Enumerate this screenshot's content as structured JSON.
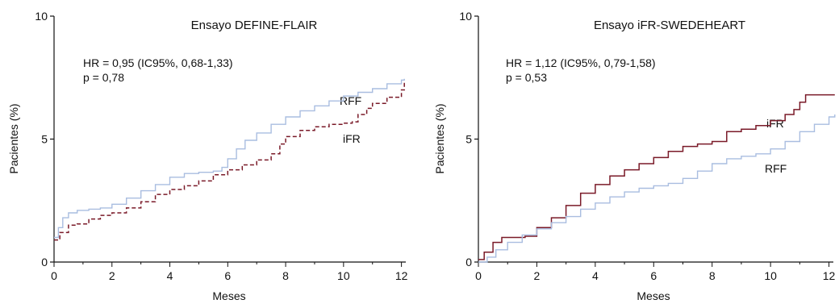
{
  "chart_data": [
    {
      "type": "line",
      "title": "Ensayo DEFINE-FLAIR",
      "xlabel": "Meses",
      "ylabel": "Pacientes (%)",
      "xlim": [
        0,
        12
      ],
      "ylim": [
        0,
        10
      ],
      "xticks": [
        "0",
        "2",
        "4",
        "6",
        "8",
        "10",
        "12"
      ],
      "yticks": [
        "0",
        "5",
        "10"
      ],
      "annotations": [
        "HR = 0,95 (IC95%, 0,68-1,33)",
        "p = 0,78"
      ],
      "series": [
        {
          "name": "RFF",
          "color": "#a9bde0",
          "dash": "solid",
          "x": [
            0,
            0.15,
            0.3,
            0.5,
            0.8,
            1.2,
            1.6,
            2.0,
            2.5,
            3.0,
            3.5,
            4.0,
            4.5,
            5.0,
            5.5,
            5.8,
            6.0,
            6.3,
            6.6,
            7.0,
            7.5,
            8.0,
            8.5,
            9.0,
            9.5,
            10.0,
            10.5,
            11.0,
            11.5,
            12.0,
            12.1
          ],
          "values": [
            1.0,
            1.4,
            1.8,
            2.0,
            2.1,
            2.15,
            2.2,
            2.35,
            2.6,
            2.9,
            3.15,
            3.45,
            3.6,
            3.65,
            3.7,
            3.85,
            4.2,
            4.6,
            4.95,
            5.25,
            5.6,
            5.9,
            6.15,
            6.35,
            6.55,
            6.75,
            6.9,
            7.05,
            7.25,
            7.4,
            7.45
          ]
        },
        {
          "name": "iFR",
          "color": "#7a1a28",
          "dash": "dashed",
          "x": [
            0,
            0.2,
            0.5,
            0.8,
            1.2,
            1.6,
            2.0,
            2.5,
            3.0,
            3.5,
            4.0,
            4.5,
            5.0,
            5.5,
            6.0,
            6.5,
            7.0,
            7.5,
            7.8,
            8.0,
            8.5,
            9.0,
            9.5,
            10.0,
            10.3,
            10.5,
            10.8,
            11.0,
            11.5,
            12.0,
            12.1
          ],
          "values": [
            0.9,
            1.2,
            1.5,
            1.55,
            1.75,
            1.9,
            2.0,
            2.2,
            2.45,
            2.75,
            2.95,
            3.1,
            3.3,
            3.55,
            3.75,
            3.95,
            4.15,
            4.4,
            4.8,
            5.1,
            5.35,
            5.5,
            5.6,
            5.65,
            5.7,
            6.0,
            6.25,
            6.45,
            6.7,
            7.0,
            7.3
          ]
        }
      ]
    },
    {
      "type": "line",
      "title": "Ensayo iFR-SWEDEHEART",
      "xlabel": "Meses",
      "ylabel": "Pacientes (%)",
      "xlim": [
        0,
        12
      ],
      "ylim": [
        0,
        10
      ],
      "xticks": [
        "0",
        "2",
        "4",
        "6",
        "8",
        "10",
        "12"
      ],
      "yticks": [
        "0",
        "5",
        "10"
      ],
      "annotations": [
        "HR = 1,12 (IC95%, 0,79-1,58)",
        "p = 0,53"
      ],
      "series": [
        {
          "name": "iFR",
          "color": "#7a1a28",
          "dash": "solid",
          "x": [
            0,
            0.2,
            0.5,
            0.8,
            1.2,
            1.6,
            2.0,
            2.5,
            3.0,
            3.5,
            4.0,
            4.5,
            5.0,
            5.5,
            6.0,
            6.5,
            7.0,
            7.5,
            8.0,
            8.5,
            9.0,
            9.5,
            10.0,
            10.5,
            10.8,
            11.0,
            11.2,
            12.2
          ],
          "values": [
            0.1,
            0.4,
            0.8,
            1.0,
            1.0,
            1.05,
            1.4,
            1.8,
            2.3,
            2.8,
            3.15,
            3.5,
            3.75,
            4.0,
            4.25,
            4.5,
            4.7,
            4.8,
            4.9,
            5.3,
            5.4,
            5.55,
            5.75,
            6.0,
            6.2,
            6.5,
            6.8,
            6.8
          ]
        },
        {
          "name": "RFF",
          "color": "#a9bde0",
          "dash": "solid",
          "x": [
            0,
            0.3,
            0.6,
            1.0,
            1.5,
            2.0,
            2.5,
            3.0,
            3.5,
            4.0,
            4.5,
            5.0,
            5.5,
            6.0,
            6.5,
            7.0,
            7.5,
            8.0,
            8.5,
            9.0,
            9.5,
            10.0,
            10.5,
            11.0,
            11.5,
            12.0,
            12.2
          ],
          "values": [
            0.0,
            0.2,
            0.5,
            0.8,
            1.1,
            1.35,
            1.6,
            1.85,
            2.15,
            2.4,
            2.65,
            2.85,
            3.0,
            3.1,
            3.2,
            3.4,
            3.7,
            4.0,
            4.2,
            4.3,
            4.4,
            4.6,
            4.9,
            5.3,
            5.6,
            5.9,
            6.0
          ]
        }
      ]
    }
  ]
}
